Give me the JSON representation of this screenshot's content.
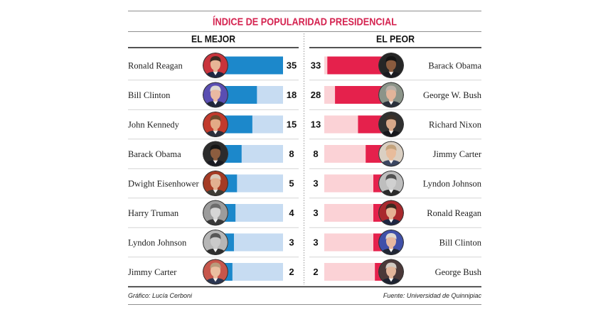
{
  "title": "ÍNDICE DE POPULARIDAD PRESIDENCIAL",
  "footer": {
    "credit": "Gráfico: Lucía Cerboni",
    "source": "Fuente: Universidad de Quinnipiac"
  },
  "colors": {
    "title": "#d4224f"
  },
  "chart_data": [
    {
      "type": "bar",
      "title": "EL MEJOR",
      "categories": [
        "Ronald Reagan",
        "Bill Clinton",
        "John Kennedy",
        "Barack Obama",
        "Dwight Eisenhower",
        "Harry Truman",
        "Lyndon Johnson",
        "Jimmy Carter"
      ],
      "values": [
        35,
        18,
        15,
        8,
        5,
        4,
        3,
        2
      ],
      "xlim": [
        0,
        35
      ],
      "grid": false,
      "data_labels": true,
      "bar_color": "#1c88cb",
      "track_color": "#c7dcf2",
      "portraits": [
        {
          "bg": "#c9343c",
          "skin": "#e7b596",
          "hair": "#3b2a22",
          "suit": "#1e2642"
        },
        {
          "bg": "#5a4eb2",
          "skin": "#eab9a2",
          "hair": "#dcd7d2",
          "suit": "#20263a"
        },
        {
          "bg": "#c13a2c",
          "skin": "#e3aa86",
          "hair": "#6e4a2c",
          "suit": "#2a2f3c"
        },
        {
          "bg": "#2c2c2c",
          "skin": "#8c5d3f",
          "hair": "#161616",
          "suit": "#1a1a22"
        },
        {
          "bg": "#a53b24",
          "skin": "#e2b090",
          "hair": "#d8cbbb",
          "suit": "#3d3b34"
        },
        {
          "bg": "#9c9c9c",
          "skin": "#d6d6d6",
          "hair": "#6c6c6c",
          "suit": "#393939"
        },
        {
          "bg": "#b6b6b6",
          "skin": "#cacaca",
          "hair": "#575757",
          "suit": "#2e2e2e"
        },
        {
          "bg": "#c7564b",
          "skin": "#eabfa0",
          "hair": "#b99b7b",
          "suit": "#2b3652"
        }
      ]
    },
    {
      "type": "bar",
      "title": "EL PEOR",
      "categories": [
        "Barack Obama",
        "George W. Bush",
        "Richard Nixon",
        "Jimmy Carter",
        "Lyndon Johnson",
        "Ronald Reagan",
        "Bill Clinton",
        "George Bush"
      ],
      "values": [
        33,
        28,
        13,
        8,
        3,
        3,
        3,
        2
      ],
      "xlim": [
        0,
        35
      ],
      "grid": false,
      "data_labels": true,
      "bar_color": "#e5214c",
      "track_color": "#fbd2d6",
      "portraits": [
        {
          "bg": "#262626",
          "skin": "#8a5b3e",
          "hair": "#141414",
          "suit": "#1a1a20"
        },
        {
          "bg": "#8b9489",
          "skin": "#e2b49a",
          "hair": "#b9b1a9",
          "suit": "#2a303b"
        },
        {
          "bg": "#303030",
          "skin": "#d8a889",
          "hair": "#3b3029",
          "suit": "#16161b"
        },
        {
          "bg": "#dacfc2",
          "skin": "#e8bc9c",
          "hair": "#c3a37d",
          "suit": "#3b4661"
        },
        {
          "bg": "#bebebe",
          "skin": "#d0d0d0",
          "hair": "#525252",
          "suit": "#2b2b2b"
        },
        {
          "bg": "#a9292d",
          "skin": "#e5b293",
          "hair": "#3b2920",
          "suit": "#1e2642"
        },
        {
          "bg": "#4050a9",
          "skin": "#e6b7a0",
          "hair": "#ddd7d1",
          "suit": "#1f2534"
        },
        {
          "bg": "#4b3939",
          "skin": "#e3b59a",
          "hair": "#d0c8c0",
          "suit": "#1d2331"
        }
      ]
    }
  ]
}
